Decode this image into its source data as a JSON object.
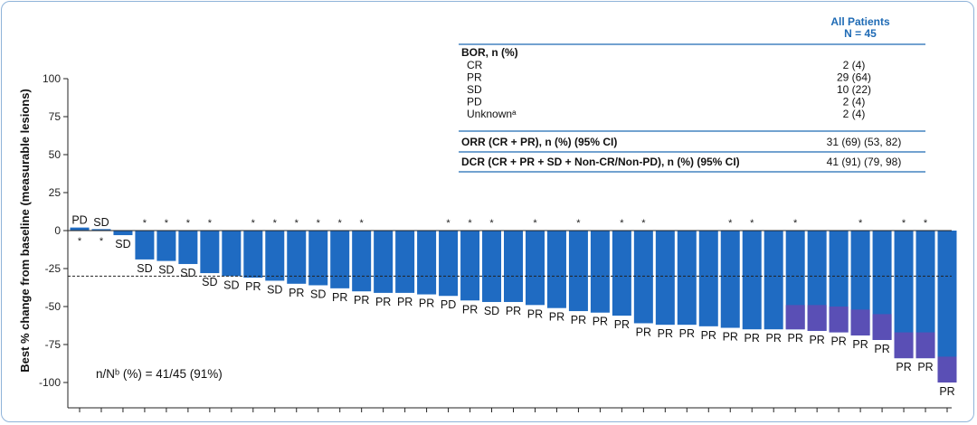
{
  "chart_data": {
    "type": "bar",
    "ylabel": "Best % change from baseline (measurable lesions)",
    "ylim": [
      -110,
      100
    ],
    "yticks": [
      100,
      75,
      50,
      25,
      0,
      -25,
      -50,
      -75,
      -100
    ],
    "threshold": -30,
    "annotation": "n/Nᵇ (%) = 41/45 (91%)",
    "colors": {
      "primary": "#1f6bc2",
      "overlay": "#5a4fb5",
      "border": "#8fb3d9",
      "header": "#1f6bb5"
    },
    "bars": [
      {
        "value": 2,
        "label": "PD",
        "star": true,
        "overlay": 0
      },
      {
        "value": 0,
        "label": "SD",
        "star": true,
        "overlay": 0
      },
      {
        "value": -3,
        "label": "SD",
        "star": false,
        "overlay": -3
      },
      {
        "value": -19,
        "label": "SD",
        "star": true,
        "overlay": 0
      },
      {
        "value": -20,
        "label": "SD",
        "star": true,
        "overlay": 0
      },
      {
        "value": -22,
        "label": "SD",
        "star": true,
        "overlay": 0
      },
      {
        "value": -28,
        "label": "SD",
        "star": true,
        "overlay": 0
      },
      {
        "value": -30,
        "label": "SD",
        "star": false,
        "overlay": 0
      },
      {
        "value": -31,
        "label": "PR",
        "star": true,
        "overlay": 0
      },
      {
        "value": -33,
        "label": "SD",
        "star": true,
        "overlay": 0
      },
      {
        "value": -35,
        "label": "PR",
        "star": true,
        "overlay": 0
      },
      {
        "value": -36,
        "label": "SD",
        "star": true,
        "overlay": 0
      },
      {
        "value": -38,
        "label": "PR",
        "star": true,
        "overlay": 0
      },
      {
        "value": -40,
        "label": "PR",
        "star": true,
        "overlay": 0
      },
      {
        "value": -41,
        "label": "PR",
        "star": false,
        "overlay": 0
      },
      {
        "value": -41,
        "label": "PR",
        "star": false,
        "overlay": 0
      },
      {
        "value": -42,
        "label": "PR",
        "star": false,
        "overlay": 0
      },
      {
        "value": -43,
        "label": "PD",
        "star": true,
        "overlay": 0
      },
      {
        "value": -46,
        "label": "PR",
        "star": true,
        "overlay": 0
      },
      {
        "value": -47,
        "label": "SD",
        "star": true,
        "overlay": 0
      },
      {
        "value": -47,
        "label": "PR",
        "star": false,
        "overlay": 0
      },
      {
        "value": -49,
        "label": "PR",
        "star": true,
        "overlay": 0
      },
      {
        "value": -51,
        "label": "PR",
        "star": false,
        "overlay": 0
      },
      {
        "value": -53,
        "label": "PR",
        "star": true,
        "overlay": 0
      },
      {
        "value": -54,
        "label": "PR",
        "star": false,
        "overlay": 0
      },
      {
        "value": -56,
        "label": "PR",
        "star": true,
        "overlay": 0
      },
      {
        "value": -61,
        "label": "PR",
        "star": true,
        "overlay": 0
      },
      {
        "value": -62,
        "label": "PR",
        "star": false,
        "overlay": 0
      },
      {
        "value": -62,
        "label": "PR",
        "star": false,
        "overlay": 0
      },
      {
        "value": -63,
        "label": "PR",
        "star": false,
        "overlay": 0
      },
      {
        "value": -64,
        "label": "PR",
        "star": true,
        "overlay": 0
      },
      {
        "value": -65,
        "label": "PR",
        "star": true,
        "overlay": 0
      },
      {
        "value": -65,
        "label": "PR",
        "star": false,
        "overlay": 0
      },
      {
        "value": -65,
        "label": "PR",
        "star": true,
        "overlay": -49
      },
      {
        "value": -66,
        "label": "PR",
        "star": false,
        "overlay": -49
      },
      {
        "value": -67,
        "label": "PR",
        "star": false,
        "overlay": -50
      },
      {
        "value": -69,
        "label": "PR",
        "star": true,
        "overlay": -52
      },
      {
        "value": -72,
        "label": "PR",
        "star": false,
        "overlay": -55
      },
      {
        "value": -84,
        "label": "PR",
        "star": true,
        "overlay": -67
      },
      {
        "value": -84,
        "label": "PR",
        "star": true,
        "overlay": -67
      },
      {
        "value": -100,
        "label": "PR",
        "star": false,
        "overlay": -83
      }
    ]
  },
  "table": {
    "header_line1": "All Patients",
    "header_line2": "N = 45",
    "bor_title": "BOR, n (%)",
    "rows": [
      {
        "label": "CR",
        "value": "2 (4)"
      },
      {
        "label": "PR",
        "value": "29 (64)"
      },
      {
        "label": "SD",
        "value": "10 (22)"
      },
      {
        "label": "PD",
        "value": "2 (4)"
      },
      {
        "label": "Unknownᵃ",
        "value": "2 (4)"
      }
    ],
    "orr_label": "ORR (CR + PR), n (%) (95% CI)",
    "orr_value": "31 (69) (53, 82)",
    "dcr_label": "DCR (CR + PR + SD + Non-CR/Non-PD), n (%) (95% CI)",
    "dcr_value": "41 (91) (79, 98)"
  }
}
